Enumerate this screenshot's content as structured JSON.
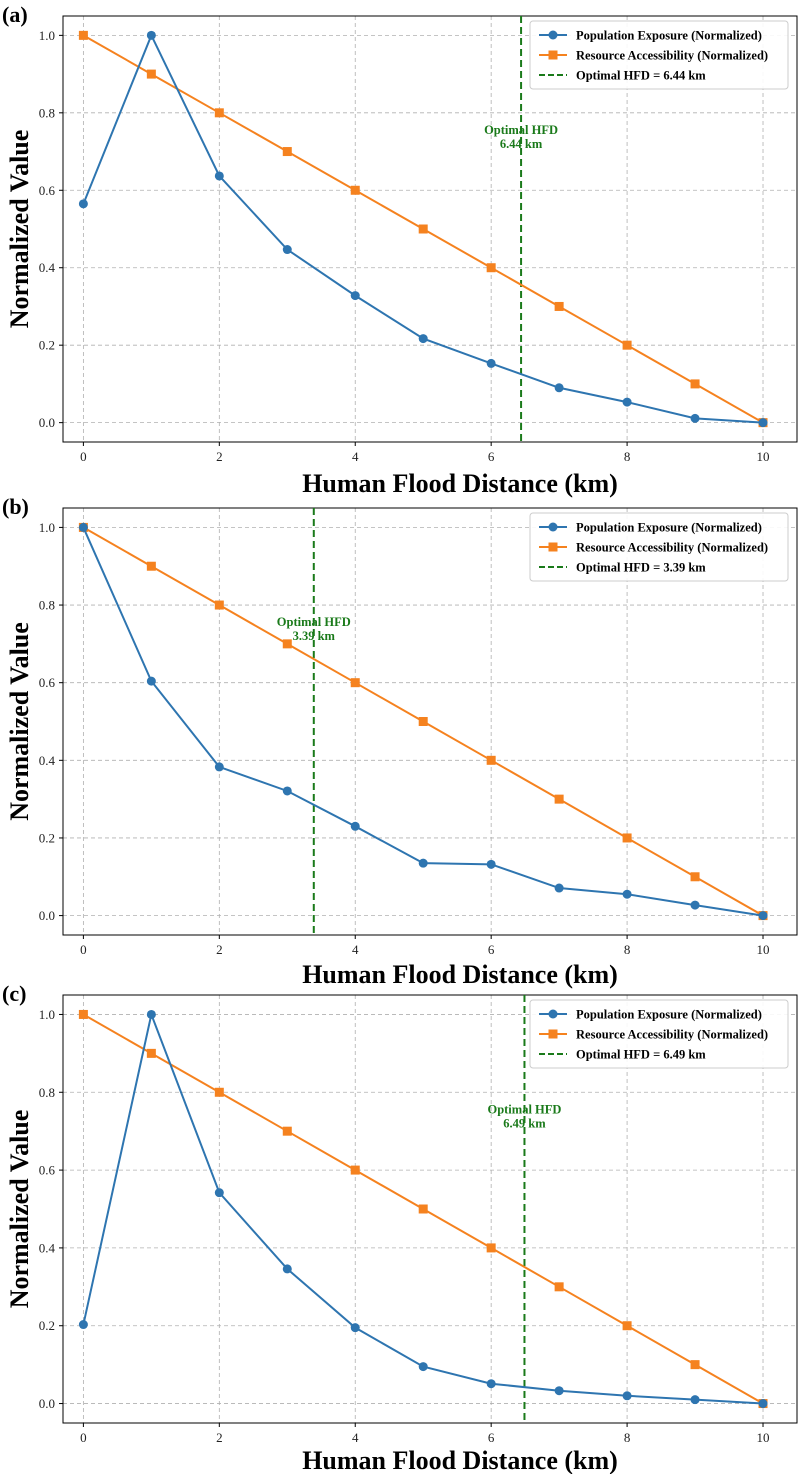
{
  "colors": {
    "population": "#2e75b0",
    "resource": "#f5821f",
    "optimal": "#1a7a1a",
    "grid": "#b0b0b0"
  },
  "chart_data": [
    {
      "type": "line",
      "panel_label": "(a)",
      "xlabel": "Human Flood Distance (km)",
      "ylabel": "Normalized Value",
      "xlim": [
        -0.3,
        10.5
      ],
      "ylim": [
        -0.05,
        1.05
      ],
      "x_ticks": [
        0,
        2,
        4,
        6,
        8,
        10
      ],
      "y_ticks": [
        0.0,
        0.2,
        0.4,
        0.6,
        0.8,
        1.0
      ],
      "grid": true,
      "legend_position": "top-right",
      "x": [
        0,
        1,
        2,
        3,
        4,
        5,
        6,
        7,
        8,
        9,
        10
      ],
      "series": [
        {
          "name": "Population Exposure (Normalized)",
          "marker": "circle",
          "values": [
            0.565,
            1.0,
            0.637,
            0.447,
            0.328,
            0.217,
            0.153,
            0.09,
            0.053,
            0.011,
            0.0
          ]
        },
        {
          "name": "Resource Accessibility (Normalized)",
          "marker": "square",
          "values": [
            1.0,
            0.9,
            0.8,
            0.7,
            0.6,
            0.5,
            0.4,
            0.3,
            0.2,
            0.1,
            0.0
          ]
        }
      ],
      "optimal_line": {
        "x": 6.44,
        "legend": "Optimal HFD = 6.44 km",
        "annotation_line1": "Optimal HFD",
        "annotation_line2": "6.44 km",
        "annotation_y": 0.73
      }
    },
    {
      "type": "line",
      "panel_label": "(b)",
      "xlabel": "Human Flood Distance (km)",
      "ylabel": "Normalized Value",
      "xlim": [
        -0.3,
        10.5
      ],
      "ylim": [
        -0.05,
        1.05
      ],
      "x_ticks": [
        0,
        2,
        4,
        6,
        8,
        10
      ],
      "y_ticks": [
        0.0,
        0.2,
        0.4,
        0.6,
        0.8,
        1.0
      ],
      "grid": true,
      "legend_position": "top-right",
      "x": [
        0,
        1,
        2,
        3,
        4,
        5,
        6,
        7,
        8,
        9,
        10
      ],
      "series": [
        {
          "name": "Population Exposure (Normalized)",
          "marker": "circle",
          "values": [
            1.0,
            0.604,
            0.383,
            0.321,
            0.23,
            0.135,
            0.132,
            0.071,
            0.055,
            0.027,
            0.0
          ]
        },
        {
          "name": "Resource Accessibility (Normalized)",
          "marker": "square",
          "values": [
            1.0,
            0.9,
            0.8,
            0.7,
            0.6,
            0.5,
            0.4,
            0.3,
            0.2,
            0.1,
            0.0
          ]
        }
      ],
      "optimal_line": {
        "x": 3.39,
        "legend": "Optimal HFD = 3.39 km",
        "annotation_line1": "Optimal HFD",
        "annotation_line2": "3.39 km",
        "annotation_y": 0.73
      }
    },
    {
      "type": "line",
      "panel_label": "(c)",
      "xlabel": "Human Flood Distance (km)",
      "ylabel": "Normalized Value",
      "xlim": [
        -0.3,
        10.5
      ],
      "ylim": [
        -0.05,
        1.05
      ],
      "x_ticks": [
        0,
        2,
        4,
        6,
        8,
        10
      ],
      "y_ticks": [
        0.0,
        0.2,
        0.4,
        0.6,
        0.8,
        1.0
      ],
      "grid": true,
      "legend_position": "top-right",
      "x": [
        0,
        1,
        2,
        3,
        4,
        5,
        6,
        7,
        8,
        9,
        10
      ],
      "series": [
        {
          "name": "Population Exposure (Normalized)",
          "marker": "circle",
          "values": [
            0.203,
            1.0,
            0.542,
            0.346,
            0.195,
            0.095,
            0.051,
            0.033,
            0.02,
            0.01,
            0.0
          ]
        },
        {
          "name": "Resource Accessibility (Normalized)",
          "marker": "square",
          "values": [
            1.0,
            0.9,
            0.8,
            0.7,
            0.6,
            0.5,
            0.4,
            0.3,
            0.2,
            0.1,
            0.0
          ]
        }
      ],
      "optimal_line": {
        "x": 6.49,
        "legend": "Optimal HFD = 6.49 km",
        "annotation_line1": "Optimal HFD",
        "annotation_line2": "6.49 km",
        "annotation_y": 0.73
      }
    }
  ]
}
